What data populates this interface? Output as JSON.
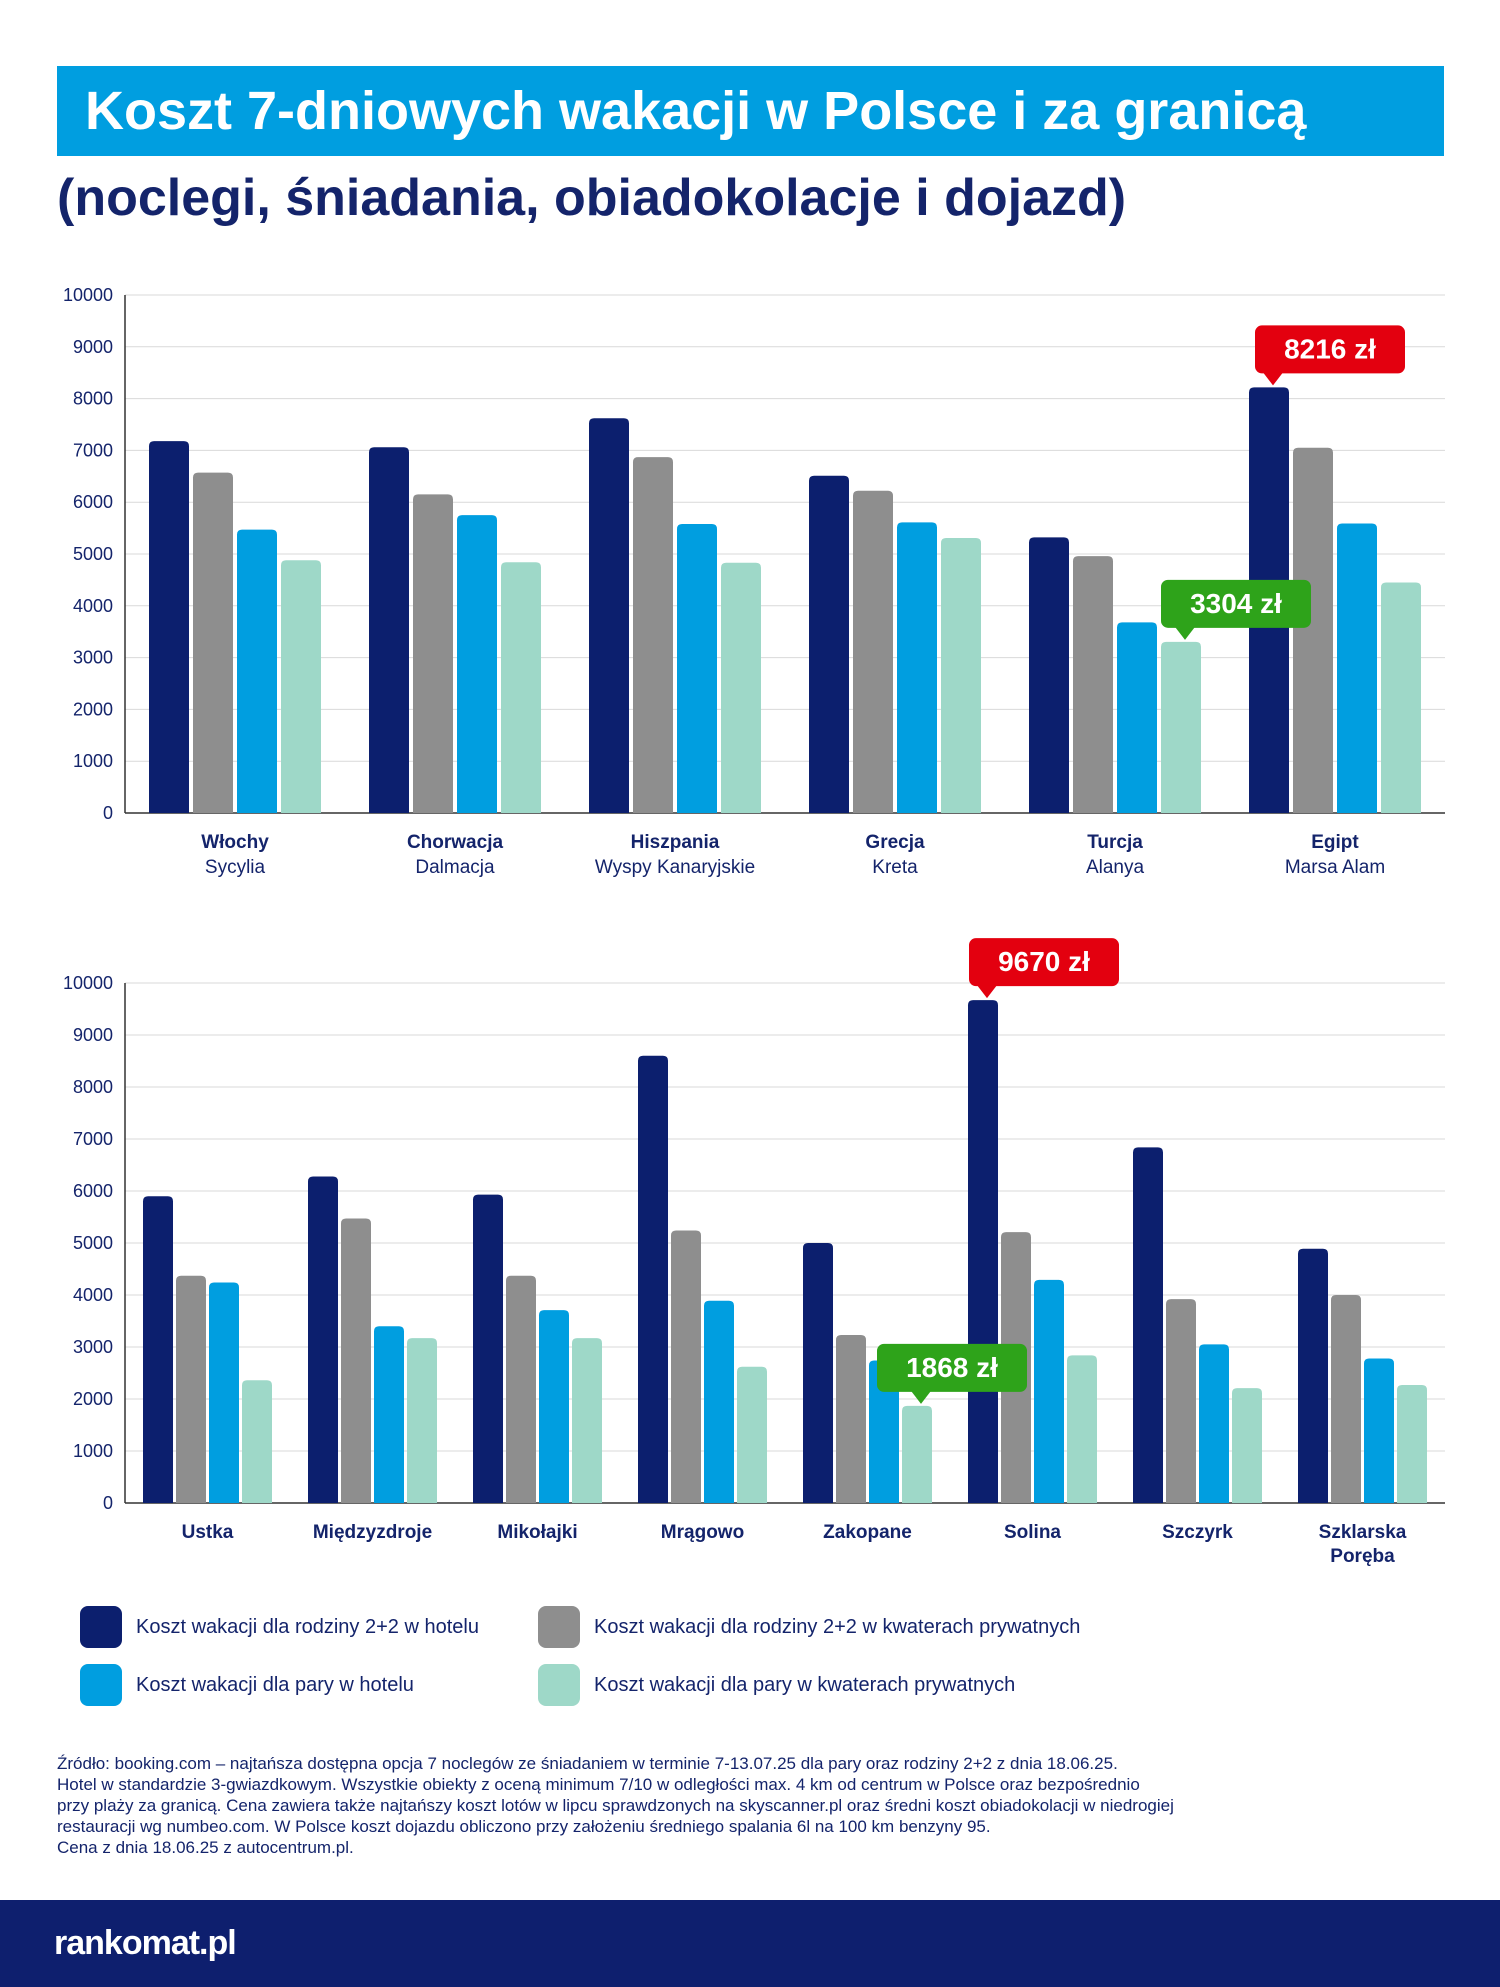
{
  "header": {
    "title": "Koszt 7-dniowych wakacji w Polsce i za granicą",
    "subtitle": "(noclegi, śniadania, obiadokolacje i dojazd)"
  },
  "colors": {
    "family_hotel": "#0c1f6e",
    "family_private": "#8e8e8e",
    "couple_hotel": "#009ee0",
    "couple_private": "#9ed8c8",
    "max_callout": "#e3000f",
    "min_callout": "#2ea31a",
    "title_bar": "#009ee0",
    "footer": "#0e1f6e"
  },
  "legend": [
    {
      "label": "Koszt wakacji dla rodziny 2+2 w hotelu",
      "color": "#0c1f6e"
    },
    {
      "label": "Koszt wakacji dla rodziny 2+2 w kwaterach prywatnych",
      "color": "#8e8e8e"
    },
    {
      "label": "Koszt wakacji dla pary w hotelu",
      "color": "#009ee0"
    },
    {
      "label": "Koszt wakacji dla pary w kwaterach prywatnych",
      "color": "#9ed8c8"
    }
  ],
  "chart_data": [
    {
      "type": "bar",
      "categories": [
        {
          "name": "Włochy",
          "sub": "Sycylia"
        },
        {
          "name": "Chorwacja",
          "sub": "Dalmacja"
        },
        {
          "name": "Hiszpania",
          "sub": "Wyspy Kanaryjskie"
        },
        {
          "name": "Grecja",
          "sub": "Kreta"
        },
        {
          "name": "Turcja",
          "sub": "Alanya"
        },
        {
          "name": "Egipt",
          "sub": "Marsa Alam"
        }
      ],
      "series": [
        {
          "name": "Koszt wakacji dla rodziny 2+2 w hotelu",
          "color": "#0c1f6e",
          "values": [
            7180,
            7060,
            7620,
            6510,
            5320,
            8216
          ]
        },
        {
          "name": "Koszt wakacji dla rodziny 2+2 w kwaterach prywatnych",
          "color": "#8e8e8e",
          "values": [
            6570,
            6150,
            6870,
            6220,
            4960,
            7050
          ]
        },
        {
          "name": "Koszt wakacji dla pary w hotelu",
          "color": "#009ee0",
          "values": [
            5470,
            5750,
            5580,
            5610,
            3680,
            5590
          ]
        },
        {
          "name": "Koszt wakacji dla pary w kwaterach prywatnych",
          "color": "#9ed8c8",
          "values": [
            4880,
            4840,
            4830,
            5310,
            3304,
            4450
          ]
        }
      ],
      "ylim": [
        0,
        10000
      ],
      "yticks": [
        "0",
        "1000",
        "2000",
        "3000",
        "4000",
        "5000",
        "6000",
        "7000",
        "8000",
        "9000",
        "10000"
      ],
      "grid": true,
      "callouts": [
        {
          "text": "8216 zł",
          "kind": "max",
          "category": 5,
          "series": 0
        },
        {
          "text": "3304 zł",
          "kind": "min",
          "category": 4,
          "series": 3
        }
      ]
    },
    {
      "type": "bar",
      "categories": [
        {
          "name": "Ustka",
          "sub": ""
        },
        {
          "name": "Międzyzdroje",
          "sub": ""
        },
        {
          "name": "Mikołajki",
          "sub": ""
        },
        {
          "name": "Mrągowo",
          "sub": ""
        },
        {
          "name": "Zakopane",
          "sub": ""
        },
        {
          "name": "Solina",
          "sub": ""
        },
        {
          "name": "Szczyrk",
          "sub": ""
        },
        {
          "name": "Szklarska\nPoręba",
          "sub": ""
        }
      ],
      "series": [
        {
          "name": "Koszt wakacji dla rodziny 2+2 w hotelu",
          "color": "#0c1f6e",
          "values": [
            5900,
            6280,
            5930,
            8600,
            5000,
            9670,
            6840,
            4890
          ]
        },
        {
          "name": "Koszt wakacji dla rodziny 2+2 w kwaterach prywatnych",
          "color": "#8e8e8e",
          "values": [
            4370,
            5470,
            4370,
            5240,
            3230,
            5210,
            3920,
            4000
          ]
        },
        {
          "name": "Koszt wakacji dla pary w hotelu",
          "color": "#009ee0",
          "values": [
            4240,
            3400,
            3710,
            3890,
            2740,
            4290,
            3050,
            2780
          ]
        },
        {
          "name": "Koszt wakacji dla pary w kwaterach prywatnych",
          "color": "#9ed8c8",
          "values": [
            2360,
            3170,
            3170,
            2620,
            1868,
            2840,
            2210,
            2270
          ]
        }
      ],
      "ylim": [
        0,
        10000
      ],
      "yticks": [
        "0",
        "1000",
        "2000",
        "3000",
        "4000",
        "5000",
        "6000",
        "7000",
        "8000",
        "9000",
        "10000"
      ],
      "grid": true,
      "callouts": [
        {
          "text": "9670 zł",
          "kind": "max",
          "category": 5,
          "series": 0
        },
        {
          "text": "1868 zł",
          "kind": "min",
          "category": 4,
          "series": 3
        }
      ]
    }
  ],
  "source": {
    "lines": [
      "Źródło:  booking.com – najtańsza dostępna opcja 7 noclegów ze śniadaniem w terminie 7-13.07.25 dla pary oraz rodziny 2+2 z dnia 18.06.25.",
      "Hotel w standardzie 3-gwiazdkowym. Wszystkie obiekty z oceną minimum 7/10 w odległości max. 4 km od centrum w Polsce oraz bezpośrednio",
      "przy plaży za granicą. Cena zawiera także najtańszy koszt lotów w lipcu sprawdzonych na skyscanner.pl oraz średni koszt obiadokolacji w niedrogiej",
      "restauracji wg numbeo.com. W Polsce koszt dojazdu obliczono przy założeniu średniego spalania 6l na 100 km benzyny 95.",
      "Cena z dnia 18.06.25 z autocentrum.pl."
    ]
  },
  "footer": {
    "logo": "rankomat.pl"
  }
}
